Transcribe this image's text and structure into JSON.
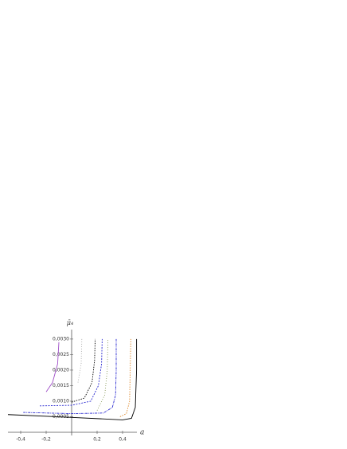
{
  "chart_data": {
    "type": "line",
    "x_label": "a",
    "y_label": "μ̄₄",
    "xlim": [
      -0.5,
      0.5
    ],
    "ylim": [
      0,
      0.0031
    ],
    "xticks": [
      {
        "value": -0.4,
        "label": "-0,4"
      },
      {
        "value": -0.2,
        "label": "-0,2"
      },
      {
        "value": 0.2,
        "label": "0,2"
      },
      {
        "value": 0.4,
        "label": "0,4"
      }
    ],
    "yticks": [
      {
        "value": 0.0005,
        "label": "0,0005"
      },
      {
        "value": 0.001,
        "label": "0,0010"
      },
      {
        "value": 0.0015,
        "label": "0,0015"
      },
      {
        "value": 0.002,
        "label": "0,0020"
      },
      {
        "value": 0.0025,
        "label": "0,0025"
      },
      {
        "value": 0.003,
        "label": "0,0030"
      }
    ],
    "series": [
      {
        "color": "#000000",
        "dash": "none",
        "x": [
          -0.5,
          0,
          0.4,
          0.47,
          0.5,
          0.51,
          0.51
        ],
        "values": [
          0.00057,
          0.00048,
          0.0004,
          0.00045,
          0.0008,
          0.002,
          0.003
        ]
      },
      {
        "color": "#e08a2c",
        "dash": "1.5,1.5",
        "x": [
          0.38,
          0.43,
          0.455,
          0.46,
          0.465
        ],
        "values": [
          0.0005,
          0.0006,
          0.001,
          0.002,
          0.003
        ]
      },
      {
        "color": "#2a2ad0",
        "dash": "3,1,1,1",
        "x": [
          -0.38,
          0,
          0.25,
          0.32,
          0.345,
          0.35,
          0.35
        ],
        "values": [
          0.00064,
          0.0006,
          0.00062,
          0.0008,
          0.0012,
          0.002,
          0.003
        ]
      },
      {
        "color": "#8a9a5b",
        "dash": "1,2",
        "x": [
          0.2,
          0.26,
          0.28,
          0.285
        ],
        "values": [
          0.0007,
          0.0012,
          0.002,
          0.003
        ]
      },
      {
        "color": "#2a2ad0",
        "dash": "2,1.5",
        "x": [
          -0.25,
          0,
          0.15,
          0.21,
          0.235,
          0.24
        ],
        "values": [
          0.00085,
          0.00087,
          0.001,
          0.0015,
          0.0022,
          0.003
        ]
      },
      {
        "color": "#000000",
        "dash": "1.5,1.5",
        "x": [
          0,
          0.1,
          0.16,
          0.18,
          0.185
        ],
        "values": [
          0.00097,
          0.0011,
          0.0016,
          0.0023,
          0.003
        ]
      },
      {
        "color": "#a050c8",
        "dash": "none",
        "x": [
          -0.2,
          -0.15,
          -0.11,
          -0.1
        ],
        "values": [
          0.0013,
          0.0016,
          0.0022,
          0.0029
        ]
      },
      {
        "color": "#aaaaaa",
        "dash": "1,2",
        "x": [
          0.05,
          0.075,
          0.08
        ],
        "values": [
          0.0016,
          0.0022,
          0.003
        ]
      }
    ]
  }
}
